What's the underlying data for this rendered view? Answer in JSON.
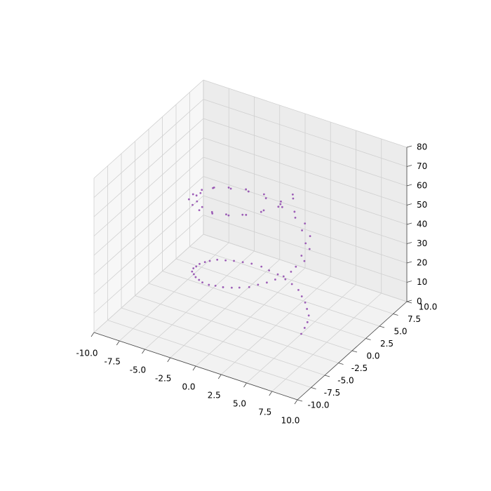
{
  "chart_data": {
    "type": "scatter3d",
    "color": "#8e44ad",
    "grid": true,
    "x": [
      5,
      4.9,
      4.8,
      4.5,
      4,
      3.5,
      2.9,
      2.3,
      1.5,
      0.8,
      0,
      -0.8,
      -1.5,
      -2.3,
      -2.9,
      -3.5,
      -4,
      -4.5,
      -4.8,
      -4.9,
      -5,
      -4.9,
      -4.8,
      -4.5,
      -4,
      -3.5,
      -2.9,
      -2.3,
      -1.5,
      -0.8,
      0,
      0.8,
      1.5,
      2.3,
      2.9,
      3.5,
      4,
      4.5,
      4.8,
      4.9,
      5.2,
      4.7,
      4.9,
      4.3,
      4.2,
      3.3,
      3.1,
      2.1,
      1.7,
      0.6,
      0.2,
      -1,
      -1.3,
      -2.5,
      -2.7,
      -3.7,
      -3.8,
      -4.7,
      -4.6,
      -5.1,
      -4.8,
      -5.1,
      -4.6,
      -4.7,
      -3.8,
      -3.7,
      -2.7,
      -2.5,
      -1.3,
      -1,
      0.2,
      0.6,
      1.7,
      2.1,
      3.1,
      3.3,
      4.2,
      4.3,
      4.9,
      4.7
    ],
    "y": [
      0,
      0.8,
      1.5,
      2.3,
      2.9,
      3.5,
      4,
      4.5,
      4.8,
      4.9,
      5,
      4.9,
      4.8,
      4.5,
      4,
      3.5,
      2.9,
      2.3,
      1.5,
      0.8,
      0,
      -0.8,
      -1.5,
      -2.3,
      -2.9,
      -3.5,
      -4,
      -4.5,
      -4.8,
      -4.9,
      -5,
      -4.9,
      -4.8,
      -4.5,
      -4,
      -3.5,
      -2.9,
      -2.3,
      -1.5,
      -0.8,
      0.2,
      0.6,
      1.7,
      2.1,
      3.1,
      3.3,
      4.2,
      4.3,
      4.9,
      4.7,
      5.2,
      4.7,
      4.9,
      4.3,
      4.2,
      3.3,
      3.1,
      2.1,
      1.7,
      0.6,
      -0.2,
      -1,
      -1.3,
      -2.5,
      -2.7,
      -3.7,
      -3.8,
      -4.7,
      -4.6,
      -5.1,
      -4.8,
      -5.1,
      -4.6,
      -4.7,
      -3.8,
      -3.7,
      -2.7,
      -2.5,
      -1.3,
      -1
    ],
    "z": [
      0,
      0.9,
      1.9,
      2.8,
      3.8,
      4.7,
      5.6,
      6.6,
      7.5,
      8.5,
      9.4,
      10.3,
      11.3,
      12.2,
      13.2,
      14.1,
      15,
      16,
      16.9,
      17.9,
      18.8,
      19.7,
      20.7,
      21.6,
      22.6,
      23.5,
      24.4,
      25.4,
      26.3,
      27.3,
      28.2,
      29.1,
      30.1,
      31,
      32,
      32.9,
      33.8,
      34.8,
      35.7,
      36.7,
      37.6,
      38.5,
      39.5,
      40.4,
      41.4,
      42.3,
      43.2,
      44.2,
      45.1,
      46.1,
      47,
      47.9,
      48.9,
      49.8,
      50.8,
      51.7,
      52.6,
      53.6,
      54.5,
      55.5,
      56.4,
      57.3,
      58.3,
      59.2,
      60.2,
      61.1,
      62,
      63,
      63.9,
      64.9,
      65.8,
      66.7,
      67.7,
      68.6,
      69.6,
      70.5,
      71.4,
      72.4,
      73.3,
      74.3
    ],
    "xlim": [
      -10,
      10
    ],
    "ylim": [
      -10,
      10
    ],
    "zlim": [
      0,
      80
    ],
    "xticks": [
      {
        "value": -10,
        "label": "-10.0"
      },
      -7.5,
      {
        "value": -5,
        "label": "-5.0"
      },
      -2.5,
      {
        "value": 0,
        "label": "0.0"
      },
      2.5,
      {
        "value": 5,
        "label": "5.0"
      },
      7.5,
      {
        "value": 10,
        "label": "10.0"
      }
    ],
    "yticks": [
      {
        "value": -10,
        "label": "-10.0"
      },
      -7.5,
      {
        "value": -5,
        "label": "-5.0"
      },
      -2.5,
      {
        "value": 0,
        "label": "0.0"
      },
      2.5,
      {
        "value": 5,
        "label": "5.0"
      },
      7.5,
      {
        "value": 10,
        "label": "10.0"
      }
    ],
    "zticks": [
      0,
      10,
      20,
      30,
      40,
      50,
      60,
      70,
      80
    ]
  }
}
